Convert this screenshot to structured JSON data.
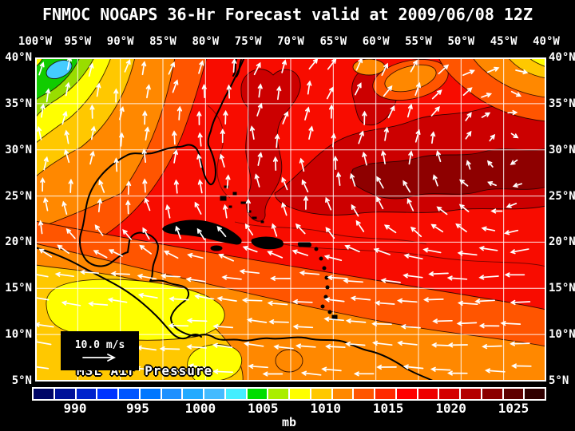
{
  "title": "FNMOC NOGAPS 36-Hr Forecast valid at 2009/06/08 12Z",
  "axes": {
    "top": [
      "100°W",
      "95°W",
      "90°W",
      "85°W",
      "80°W",
      "75°W",
      "70°W",
      "65°W",
      "60°W",
      "55°W",
      "50°W",
      "45°W",
      "40°W"
    ],
    "left": [
      "40°N",
      "35°N",
      "30°N",
      "25°N",
      "20°N",
      "15°N",
      "10°N",
      "5°N"
    ],
    "right": [
      "40°N",
      "35°N",
      "30°N",
      "25°N",
      "20°N",
      "15°N",
      "10°N",
      "5°N"
    ]
  },
  "map": {
    "pressure_label": "MSL Air Pressure",
    "wind_scale_label": "10.0 m/s"
  },
  "colorbar": {
    "unit": "mb",
    "tick_labels": [
      "990",
      "995",
      "1000",
      "1005",
      "1010",
      "1015",
      "1020",
      "1025"
    ],
    "cell_colors": [
      "#000566",
      "#001199",
      "#0022CC",
      "#0033FF",
      "#0055FF",
      "#0077FF",
      "#1E90FF",
      "#22AAFF",
      "#44BBFF",
      "#44EEFF",
      "#00DD00",
      "#AAEE00",
      "#FFFF00",
      "#FFC800",
      "#FF8800",
      "#FF5500",
      "#FF2A00",
      "#FF0000",
      "#EE0000",
      "#D40000",
      "#B40000",
      "#8B0000",
      "#5E0000",
      "#300000"
    ]
  },
  "colors": {
    "background": "#000000",
    "text": "#FFFFFF",
    "grid_lines": "#FFFFFF",
    "coastline": "#000000",
    "wind_arrows": "#FFFFFF"
  }
}
